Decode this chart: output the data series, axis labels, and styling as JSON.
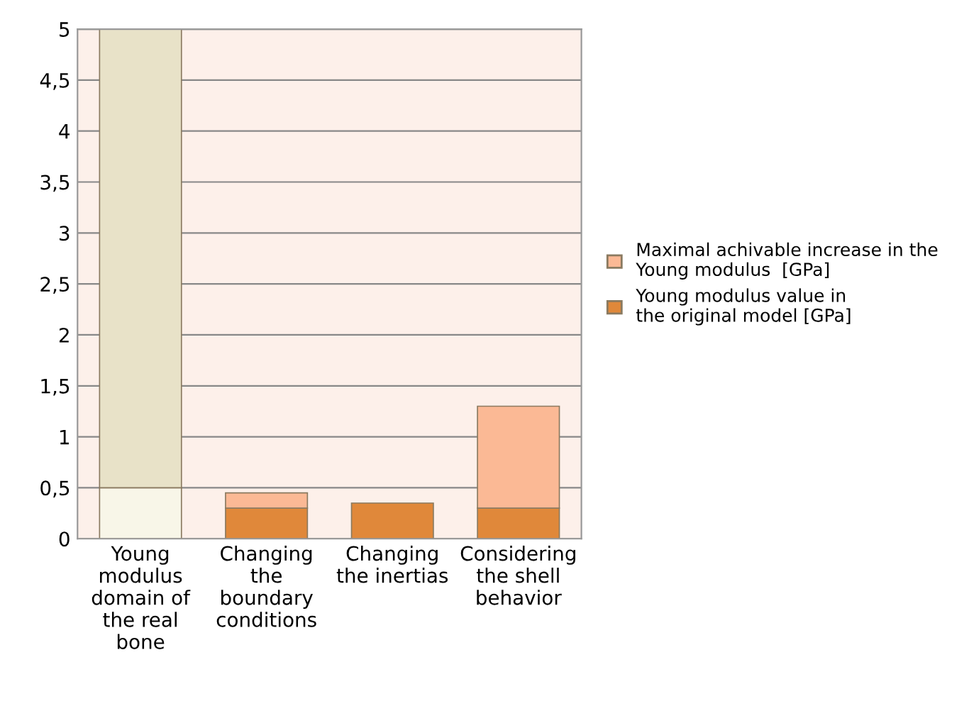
{
  "chart_data": {
    "type": "bar",
    "stacked": true,
    "categories": [
      "Young\nmodulus\ndomain of\nthe real\nbone",
      "Changing\nthe\nboundary\nconditions",
      "Changing\nthe inertias",
      "Considering\nthe shell\nbehavior"
    ],
    "series": [
      {
        "name": "Young modulus value in the original model [GPa]",
        "color": "#e0883a",
        "colors": [
          "#f8f6e8",
          "#e0883a",
          "#e0883a",
          "#e0883a"
        ],
        "values": [
          0.5,
          0.3,
          0.35,
          0.3
        ]
      },
      {
        "name": "Maximal achivable increase in the Young modulus  [GPa]",
        "color": "#fbb995",
        "colors": [
          "#e8e2c8",
          "#fbb995",
          "#fbb995",
          "#fbb995"
        ],
        "values": [
          4.5,
          0.15,
          null,
          1.0
        ]
      }
    ],
    "ylim": [
      0,
      5
    ],
    "yticks": [
      0,
      {
        "value": 0.5,
        "label": "0,5"
      },
      1,
      {
        "value": 1.5,
        "label": "1,5"
      },
      2,
      {
        "value": 2.5,
        "label": "2,5"
      },
      3,
      {
        "value": 3.5,
        "label": "3,5"
      },
      4,
      {
        "value": 4.5,
        "label": "4,5"
      },
      5
    ],
    "grid": "y",
    "legend": "right"
  }
}
